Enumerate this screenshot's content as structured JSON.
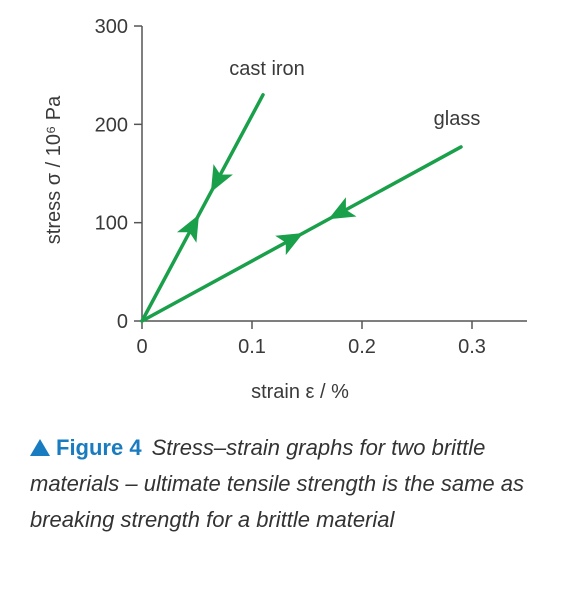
{
  "chart_data": {
    "type": "line",
    "ylabel": "stress σ / 10⁶ Pa",
    "xlabel": "strain ε / %",
    "xlim": [
      0,
      0.35
    ],
    "ylim": [
      0,
      300
    ],
    "xticks": [
      0,
      0.1,
      0.2,
      0.3
    ],
    "xtick_labels": [
      "0",
      "0.1",
      "0.2",
      "0.3"
    ],
    "yticks": [
      0,
      100,
      200,
      300
    ],
    "ytick_labels": [
      "0",
      "100",
      "200",
      "300"
    ],
    "line_color": "#1aa04a",
    "series": [
      {
        "name": "cast iron",
        "x": [
          0,
          0.11
        ],
        "y": [
          0,
          230
        ]
      },
      {
        "name": "glass",
        "x": [
          0,
          0.29
        ],
        "y": [
          0,
          177
        ]
      }
    ],
    "grid": false
  },
  "caption": {
    "label": "Figure 4",
    "text": "Stress–strain graphs for two brittle materials – ultimate tensile strength is the same as breaking strength for a brittle material",
    "label_color": "#1a7cc0"
  }
}
